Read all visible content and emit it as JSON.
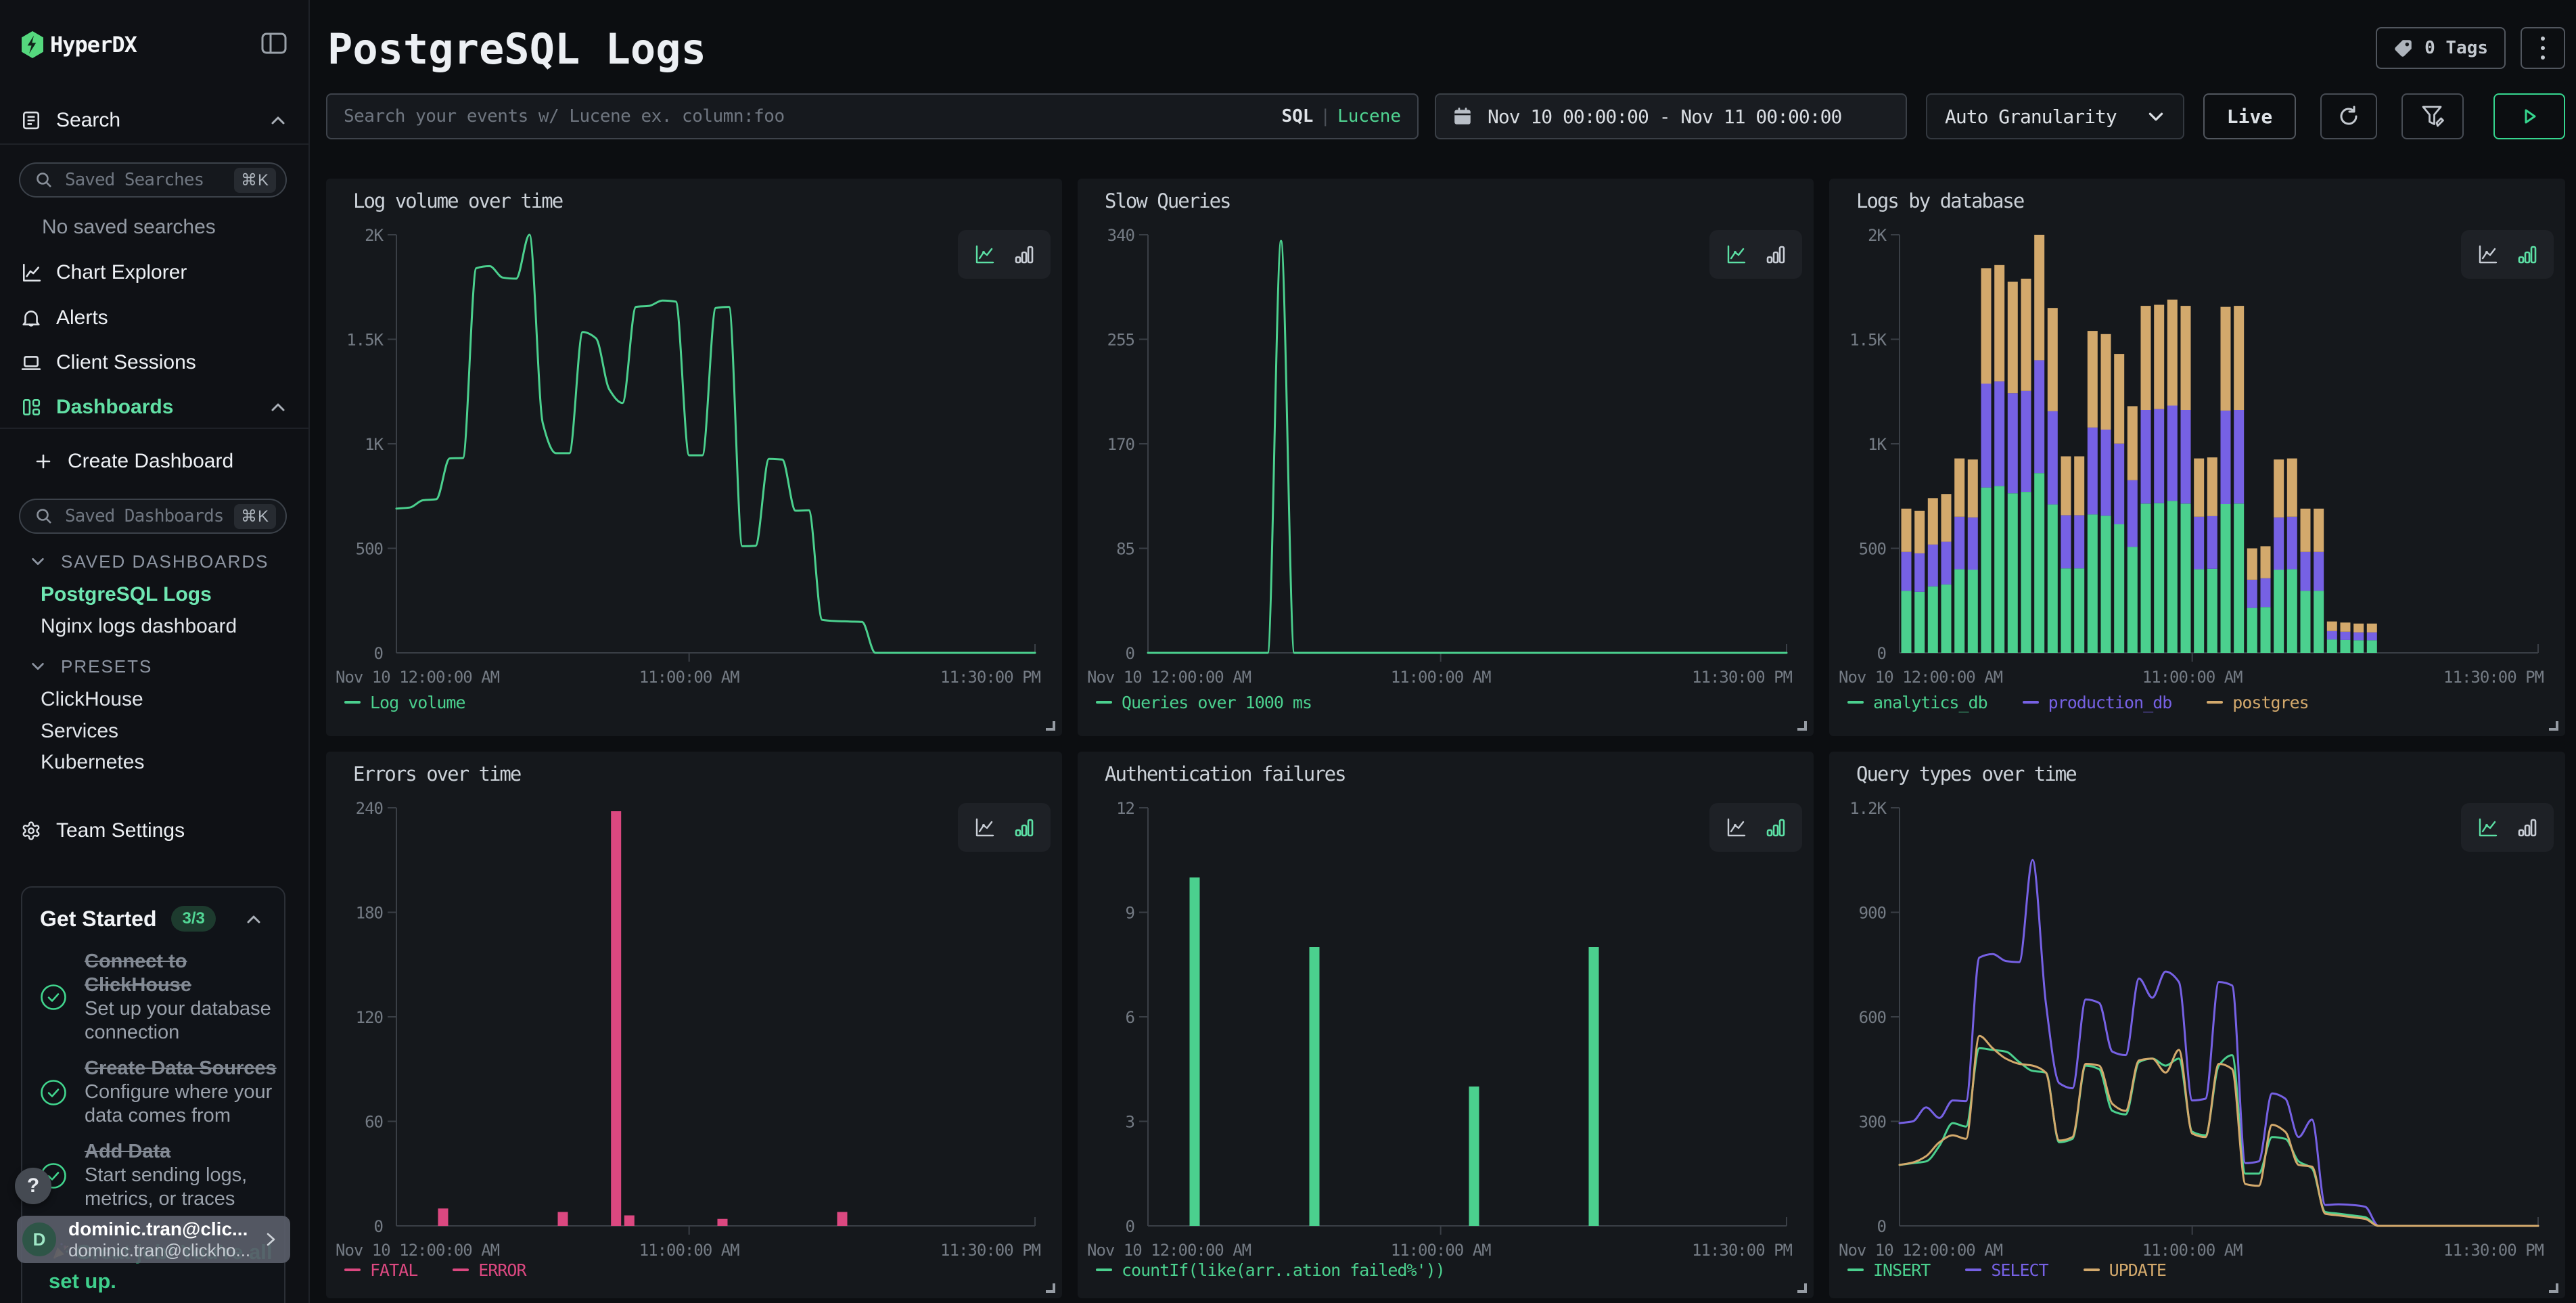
{
  "brand": {
    "name": "HyperDX"
  },
  "sidebar": {
    "search_section": "Search",
    "saved_searches_placeholder": "Saved Searches",
    "shortcut": "⌘K",
    "no_saved_searches": "No saved searches",
    "nav": {
      "chart_explorer": "Chart Explorer",
      "alerts": "Alerts",
      "client_sessions": "Client Sessions",
      "dashboards": "Dashboards"
    },
    "create_dashboard": "Create Dashboard",
    "saved_dashboards_placeholder": "Saved Dashboards",
    "saved_dashboards_header": "SAVED DASHBOARDS",
    "saved_dashboards": {
      "0": {
        "label": "PostgreSQL Logs"
      },
      "1": {
        "label": "Nginx logs dashboard"
      }
    },
    "presets_header": "PRESETS",
    "presets": {
      "0": "ClickHouse",
      "1": "Services",
      "2": "Kubernetes"
    },
    "team_settings": "Team Settings",
    "get_started": {
      "title": "Get Started",
      "badge": "3/3",
      "items": {
        "0": {
          "title": "Connect to\nClickHouse",
          "subtitle": "Set up your database\nconnection"
        },
        "1": {
          "title": "Create Data Sources",
          "subtitle": "Configure where your\ndata comes from"
        },
        "2": {
          "title": "Add Data",
          "subtitle": "Start sending logs,\nmetrics, or traces"
        }
      },
      "congrats": "Great job! You're all\nset up."
    },
    "help_label": "?",
    "user": {
      "initial": "D",
      "name": "dominic.tran@clic...",
      "email": "dominic.tran@clickho..."
    }
  },
  "header": {
    "title": "PostgreSQL Logs",
    "tags_button": "0 Tags"
  },
  "toolbar": {
    "search_placeholder": "Search your events w/ Lucene ex. column:foo",
    "sql_label": "SQL",
    "lang_separator": "|",
    "lucene_label": "Lucene",
    "time_range": "Nov 10 00:00:00 - Nov 11 00:00:00",
    "granularity": "Auto Granularity",
    "live_button": "Live"
  },
  "colors": {
    "accent_green": "#50d592",
    "series_green": "#4bd08e",
    "series_purple": "#7661e4",
    "series_tan": "#d3a96c",
    "series_pink": "#db4880",
    "axis": "#3a3f46",
    "tick_label": "#747b84",
    "panel_bg": "#15181c",
    "page_bg": "#0c0e11"
  },
  "chart_data": [
    {
      "title": "Log volume over time",
      "type": "line",
      "ylim": [
        0,
        2000
      ],
      "yticks": [
        "0",
        "500",
        "1K",
        "1.5K",
        "2K"
      ],
      "xticks": [
        "Nov 10 12:00:00 AM",
        "11:00:00 AM",
        "11:30:00 PM"
      ],
      "x_hours": 24,
      "bucket_minutes": 30,
      "legend_position": "bottom",
      "grid": false,
      "series": [
        {
          "name": "Log volume",
          "color": "#4bd08e",
          "values": [
            690,
            695,
            730,
            735,
            930,
            932,
            1840,
            1850,
            1795,
            1790,
            2000,
            1100,
            955,
            955,
            1535,
            1505,
            1260,
            1195,
            1655,
            1660,
            1685,
            1680,
            945,
            945,
            1650,
            1655,
            510,
            512,
            928,
            925,
            680,
            682,
            158,
            152,
            150,
            148,
            0,
            0,
            0,
            0,
            0,
            0,
            0,
            0,
            0,
            0,
            0,
            0
          ]
        }
      ]
    },
    {
      "title": "Slow Queries",
      "type": "line",
      "ylim": [
        0,
        340
      ],
      "yticks": [
        "0",
        "85",
        "170",
        "255",
        "340"
      ],
      "xticks": [
        "Nov 10 12:00:00 AM",
        "11:00:00 AM",
        "11:30:00 PM"
      ],
      "x_hours": 24,
      "bucket_minutes": 30,
      "legend_position": "bottom",
      "grid": false,
      "series": [
        {
          "name": "Queries over 1000 ms",
          "color": "#4bd08e",
          "values": [
            0,
            0,
            0,
            0,
            0,
            0,
            0,
            0,
            0,
            0,
            335,
            0,
            0,
            0,
            0,
            0,
            0,
            0,
            0,
            0,
            0,
            0,
            0,
            0,
            0,
            0,
            0,
            0,
            0,
            0,
            0,
            0,
            0,
            0,
            0,
            0,
            0,
            0,
            0,
            0,
            0,
            0,
            0,
            0,
            0,
            0,
            0,
            0
          ]
        }
      ]
    },
    {
      "title": "Logs by database",
      "type": "bar",
      "stacked": true,
      "ylim": [
        0,
        2000
      ],
      "yticks": [
        "0",
        "500",
        "1K",
        "1.5K",
        "2K"
      ],
      "xticks": [
        "Nov 10 12:00:00 AM",
        "11:00:00 AM",
        "11:30:00 PM"
      ],
      "x_hours": 24,
      "bucket_minutes": 30,
      "legend_position": "bottom",
      "grid": false,
      "series": [
        {
          "name": "analytics_db",
          "color": "#4bd08e",
          "values": [
            297,
            292,
            318,
            327,
            400,
            398,
            791,
            798,
            763,
            770,
            860,
            710,
            404,
            404,
            662,
            656,
            615,
            507,
            714,
            716,
            727,
            714,
            400,
            402,
            712,
            714,
            215,
            219,
            398,
            400,
            297,
            297,
            64,
            62,
            60,
            60,
            0,
            0,
            0,
            0,
            0,
            0,
            0,
            0,
            0,
            0,
            0,
            0
          ]
        },
        {
          "name": "production_db",
          "color": "#7661e4",
          "values": [
            186,
            184,
            200,
            205,
            251,
            250,
            497,
            501,
            479,
            483,
            540,
            446,
            254,
            254,
            416,
            412,
            386,
            319,
            448,
            450,
            456,
            448,
            251,
            252,
            447,
            448,
            135,
            138,
            250,
            251,
            186,
            186,
            40,
            39,
            38,
            38,
            0,
            0,
            0,
            0,
            0,
            0,
            0,
            0,
            0,
            0,
            0,
            0
          ]
        },
        {
          "name": "postgres",
          "color": "#d3a96c",
          "values": [
            207,
            204,
            222,
            228,
            279,
            277,
            552,
            556,
            533,
            537,
            600,
            494,
            282,
            282,
            462,
            457,
            429,
            354,
            498,
            499,
            507,
            498,
            279,
            281,
            496,
            498,
            150,
            153,
            277,
            279,
            207,
            207,
            46,
            44,
            42,
            42,
            0,
            0,
            0,
            0,
            0,
            0,
            0,
            0,
            0,
            0,
            0,
            0
          ]
        }
      ]
    },
    {
      "title": "Errors over time",
      "type": "bar",
      "stacked": true,
      "ylim": [
        0,
        240
      ],
      "yticks": [
        "0",
        "60",
        "120",
        "180",
        "240"
      ],
      "xticks": [
        "Nov 10 12:00:00 AM",
        "11:00:00 AM",
        "11:30:00 PM"
      ],
      "x_hours": 24,
      "bucket_minutes": 30,
      "legend_position": "bottom",
      "grid": false,
      "series": [
        {
          "name": "FATAL",
          "color": "#db4880",
          "values": [
            0,
            0,
            0,
            0,
            0,
            0,
            0,
            0,
            0,
            0,
            0,
            0,
            0,
            0,
            0,
            0,
            0,
            0,
            0,
            0,
            0,
            0,
            0,
            0,
            0,
            0,
            0,
            0,
            0,
            0,
            0,
            0,
            0,
            0,
            0,
            0,
            0,
            0,
            0,
            0,
            0,
            0,
            0,
            0,
            0,
            0,
            0,
            0
          ]
        },
        {
          "name": "ERROR",
          "color": "#db4880",
          "values": [
            0,
            0,
            0,
            10,
            0,
            0,
            0,
            0,
            0,
            0,
            0,
            0,
            8,
            0,
            0,
            0,
            238,
            6,
            0,
            0,
            0,
            0,
            0,
            0,
            4,
            0,
            0,
            0,
            0,
            0,
            0,
            0,
            0,
            8,
            0,
            0,
            0,
            0,
            0,
            0,
            0,
            0,
            0,
            0,
            0,
            0,
            0,
            0
          ]
        }
      ]
    },
    {
      "title": "Authentication failures",
      "type": "bar",
      "stacked": false,
      "ylim": [
        0,
        12
      ],
      "yticks": [
        "0",
        "3",
        "6",
        "9",
        "12"
      ],
      "xticks": [
        "Nov 10 12:00:00 AM",
        "11:00:00 AM",
        "11:30:00 PM"
      ],
      "x_hours": 24,
      "bucket_minutes": 30,
      "legend_position": "bottom",
      "grid": false,
      "series": [
        {
          "name": "countIf(like(arr..ation failed%'))",
          "color": "#4bd08e",
          "values": [
            0,
            0,
            0,
            10,
            0,
            0,
            0,
            0,
            0,
            0,
            0,
            0,
            8,
            0,
            0,
            0,
            0,
            0,
            0,
            0,
            0,
            0,
            0,
            0,
            4,
            0,
            0,
            0,
            0,
            0,
            0,
            0,
            0,
            8,
            0,
            0,
            0,
            0,
            0,
            0,
            0,
            0,
            0,
            0,
            0,
            0,
            0,
            0
          ]
        }
      ]
    },
    {
      "title": "Query types over time",
      "type": "line",
      "ylim": [
        0,
        1200
      ],
      "yticks": [
        "0",
        "300",
        "600",
        "900",
        "1.2K"
      ],
      "xticks": [
        "Nov 10 12:00:00 AM",
        "11:00:00 AM",
        "11:30:00 PM"
      ],
      "x_hours": 24,
      "bucket_minutes": 30,
      "legend_position": "bottom",
      "grid": false,
      "series": [
        {
          "name": "INSERT",
          "color": "#4bd08e",
          "values": [
            175,
            180,
            185,
            230,
            295,
            285,
            510,
            505,
            500,
            470,
            445,
            440,
            240,
            250,
            460,
            450,
            330,
            320,
            470,
            480,
            460,
            480,
            270,
            260,
            460,
            490,
            150,
            150,
            255,
            250,
            185,
            165,
            40,
            35,
            30,
            25,
            0,
            0,
            0,
            0,
            0,
            0,
            0,
            0,
            0,
            0,
            0,
            0
          ]
        },
        {
          "name": "SELECT",
          "color": "#7661e4",
          "values": [
            295,
            300,
            340,
            310,
            360,
            358,
            770,
            780,
            760,
            757,
            1050,
            640,
            410,
            395,
            650,
            640,
            500,
            490,
            710,
            655,
            730,
            700,
            360,
            365,
            700,
            690,
            180,
            185,
            380,
            365,
            255,
            305,
            60,
            62,
            60,
            55,
            0,
            0,
            0,
            0,
            0,
            0,
            0,
            0,
            0,
            0,
            0,
            0
          ]
        },
        {
          "name": "UPDATE",
          "color": "#d3a96c",
          "values": [
            175,
            182,
            200,
            240,
            260,
            250,
            545,
            510,
            480,
            465,
            460,
            440,
            245,
            255,
            465,
            460,
            350,
            330,
            475,
            480,
            440,
            505,
            265,
            255,
            465,
            450,
            120,
            115,
            290,
            270,
            175,
            170,
            35,
            30,
            25,
            20,
            0,
            0,
            0,
            0,
            0,
            0,
            0,
            0,
            0,
            0,
            0,
            0
          ]
        }
      ]
    }
  ]
}
